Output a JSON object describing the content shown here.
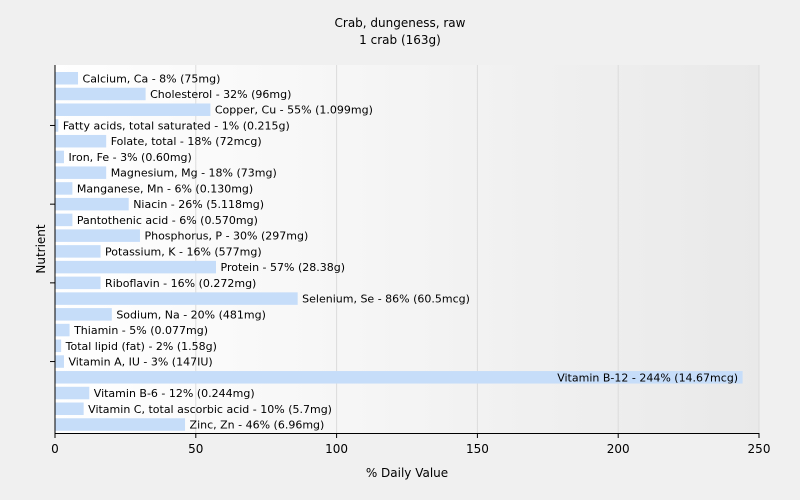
{
  "chart_data": {
    "type": "bar",
    "orientation": "horizontal",
    "title": "Crab, dungeness, raw",
    "subtitle": "1 crab (163g)",
    "xlabel": "% Daily Value",
    "ylabel": "Nutrient",
    "xlim": [
      0,
      250
    ],
    "x_ticks": [
      0,
      50,
      100,
      150,
      200,
      250
    ],
    "grid": true,
    "bar_color": "#c6ddf9",
    "bars": [
      {
        "label": "Calcium, Ca - 8% (75mg)",
        "value": 8
      },
      {
        "label": "Cholesterol - 32% (96mg)",
        "value": 32
      },
      {
        "label": "Copper, Cu - 55% (1.099mg)",
        "value": 55
      },
      {
        "label": "Fatty acids, total saturated - 1% (0.215g)",
        "value": 1
      },
      {
        "label": "Folate, total - 18% (72mcg)",
        "value": 18
      },
      {
        "label": "Iron, Fe - 3% (0.60mg)",
        "value": 3
      },
      {
        "label": "Magnesium, Mg - 18% (73mg)",
        "value": 18
      },
      {
        "label": "Manganese, Mn - 6% (0.130mg)",
        "value": 6
      },
      {
        "label": "Niacin - 26% (5.118mg)",
        "value": 26
      },
      {
        "label": "Pantothenic acid - 6% (0.570mg)",
        "value": 6
      },
      {
        "label": "Phosphorus, P - 30% (297mg)",
        "value": 30
      },
      {
        "label": "Potassium, K - 16% (577mg)",
        "value": 16
      },
      {
        "label": "Protein - 57% (28.38g)",
        "value": 57
      },
      {
        "label": "Riboflavin - 16% (0.272mg)",
        "value": 16
      },
      {
        "label": "Selenium, Se - 86% (60.5mcg)",
        "value": 86
      },
      {
        "label": "Sodium, Na - 20% (481mg)",
        "value": 20
      },
      {
        "label": "Thiamin - 5% (0.077mg)",
        "value": 5
      },
      {
        "label": "Total lipid (fat) - 2% (1.58g)",
        "value": 2
      },
      {
        "label": "Vitamin A, IU - 3% (147IU)",
        "value": 3
      },
      {
        "label": "Vitamin B-12 - 244% (14.67mcg)",
        "value": 244
      },
      {
        "label": "Vitamin B-6 - 12% (0.244mg)",
        "value": 12
      },
      {
        "label": "Vitamin C, total ascorbic acid - 10% (5.7mg)",
        "value": 10
      },
      {
        "label": "Zinc, Zn - 46% (6.96mg)",
        "value": 46
      }
    ]
  }
}
